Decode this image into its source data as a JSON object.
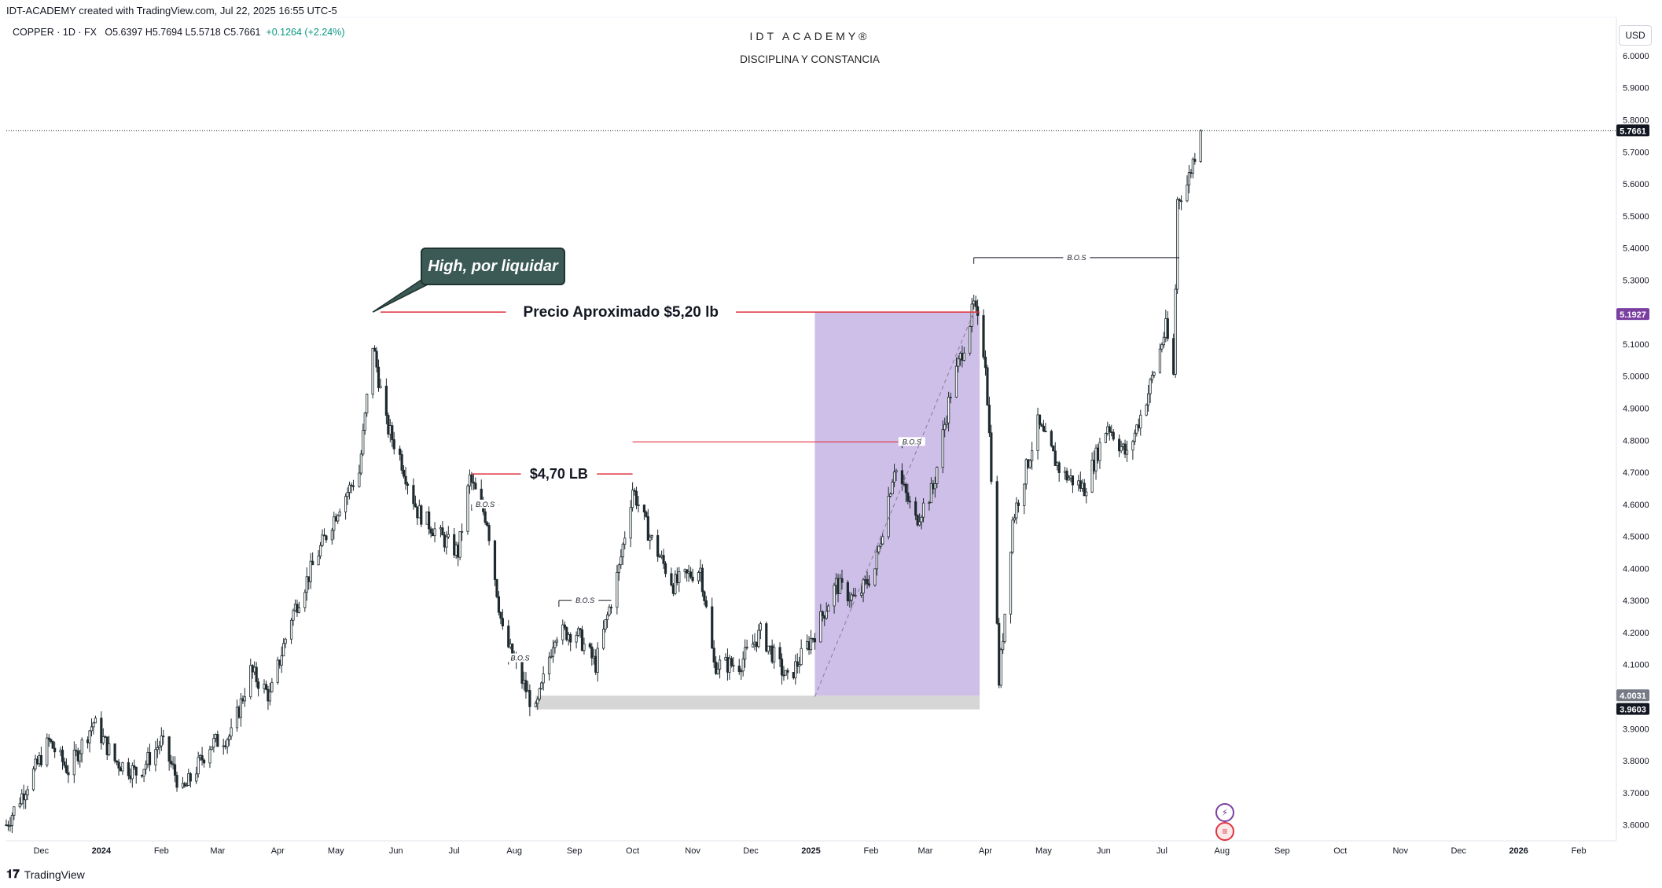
{
  "header": {
    "attribution": "IDT-ACADEMY created with TradingView.com, Jul 22, 2025 16:55 UTC-5",
    "symbol": "COPPER · 1D · FX",
    "ohlc": "O5.6397 H5.7694 L5.5718 C5.7661",
    "change": "+0.1264 (+2.24%)"
  },
  "watermark": {
    "line1": "IDT ACADEMY®",
    "line2": "DISCIPLINA Y CONSTANCIA"
  },
  "currency_button": "USD",
  "branding": "TradingView",
  "icons": {
    "flash": "lightning-icon",
    "flag": "us-flag-icon"
  },
  "colors": {
    "bull": "#1e2a2e",
    "bear": "#1e2a2e",
    "level": "#e0323f",
    "zone": "#b39ddb",
    "accent_label": "#7b3fa1"
  },
  "chart_data": {
    "type": "candlestick",
    "title": "COPPER · 1D · FX",
    "ylim": [
      3.55,
      6.12
    ],
    "y_ticks": [
      "3.6000",
      "3.7000",
      "3.8000",
      "3.9000",
      "4.0000",
      "4.1000",
      "4.2000",
      "4.3000",
      "4.4000",
      "4.5000",
      "4.6000",
      "4.7000",
      "4.8000",
      "4.9000",
      "5.0000",
      "5.1000",
      "5.2000",
      "5.3000",
      "5.4000",
      "5.5000",
      "5.6000",
      "5.7000",
      "5.8000",
      "5.9000",
      "6.0000"
    ],
    "x_range": [
      "2023-11-13",
      "2026-02-20"
    ],
    "x_ticks": [
      {
        "label": "Dec",
        "date": "2023-12-01"
      },
      {
        "label": "2024",
        "date": "2024-01-01"
      },
      {
        "label": "Feb",
        "date": "2024-02-01"
      },
      {
        "label": "Mar",
        "date": "2024-03-01"
      },
      {
        "label": "Apr",
        "date": "2024-04-01"
      },
      {
        "label": "May",
        "date": "2024-05-01"
      },
      {
        "label": "Jun",
        "date": "2024-06-01"
      },
      {
        "label": "Jul",
        "date": "2024-07-01"
      },
      {
        "label": "Aug",
        "date": "2024-08-01"
      },
      {
        "label": "Sep",
        "date": "2024-09-01"
      },
      {
        "label": "Oct",
        "date": "2024-10-01"
      },
      {
        "label": "Nov",
        "date": "2024-11-01"
      },
      {
        "label": "Dec",
        "date": "2024-12-01"
      },
      {
        "label": "2025",
        "date": "2025-01-01"
      },
      {
        "label": "Feb",
        "date": "2025-02-01"
      },
      {
        "label": "Mar",
        "date": "2025-03-01"
      },
      {
        "label": "Apr",
        "date": "2025-04-01"
      },
      {
        "label": "May",
        "date": "2025-05-01"
      },
      {
        "label": "Jun",
        "date": "2025-06-01"
      },
      {
        "label": "Jul",
        "date": "2025-07-01"
      },
      {
        "label": "Aug",
        "date": "2025-08-01"
      },
      {
        "label": "Sep",
        "date": "2025-09-01"
      },
      {
        "label": "Oct",
        "date": "2025-10-01"
      },
      {
        "label": "Nov",
        "date": "2025-11-01"
      },
      {
        "label": "Dec",
        "date": "2025-12-01"
      },
      {
        "label": "2026",
        "date": "2026-01-01"
      },
      {
        "label": "Feb",
        "date": "2026-02-01"
      }
    ],
    "price_path": [
      [
        "2023-11-13",
        3.6
      ],
      [
        "2023-11-25",
        3.74
      ],
      [
        "2023-12-05",
        3.86
      ],
      [
        "2023-12-15",
        3.77
      ],
      [
        "2023-12-28",
        3.92
      ],
      [
        "2024-01-08",
        3.8
      ],
      [
        "2024-01-20",
        3.76
      ],
      [
        "2024-02-01",
        3.86
      ],
      [
        "2024-02-12",
        3.7
      ],
      [
        "2024-02-26",
        3.85
      ],
      [
        "2024-03-08",
        3.88
      ],
      [
        "2024-03-18",
        4.08
      ],
      [
        "2024-03-28",
        4.0
      ],
      [
        "2024-04-08",
        4.25
      ],
      [
        "2024-04-22",
        4.45
      ],
      [
        "2024-05-03",
        4.6
      ],
      [
        "2024-05-13",
        4.7
      ],
      [
        "2024-05-20",
        5.1
      ],
      [
        "2024-05-27",
        4.85
      ],
      [
        "2024-06-03",
        4.75
      ],
      [
        "2024-06-12",
        4.58
      ],
      [
        "2024-06-24",
        4.5
      ],
      [
        "2024-07-03",
        4.45
      ],
      [
        "2024-07-09",
        4.68
      ],
      [
        "2024-07-18",
        4.55
      ],
      [
        "2024-07-26",
        4.2
      ],
      [
        "2024-08-05",
        4.05
      ],
      [
        "2024-08-12",
        3.95
      ],
      [
        "2024-08-22",
        4.2
      ],
      [
        "2024-09-02",
        4.2
      ],
      [
        "2024-09-12",
        4.1
      ],
      [
        "2024-09-24",
        4.4
      ],
      [
        "2024-10-01",
        4.65
      ],
      [
        "2024-10-10",
        4.5
      ],
      [
        "2024-10-22",
        4.35
      ],
      [
        "2024-11-05",
        4.4
      ],
      [
        "2024-11-12",
        4.1
      ],
      [
        "2024-11-25",
        4.1
      ],
      [
        "2024-12-06",
        4.2
      ],
      [
        "2024-12-20",
        4.05
      ],
      [
        "2025-01-03",
        4.2
      ],
      [
        "2025-01-14",
        4.35
      ],
      [
        "2025-01-24",
        4.3
      ],
      [
        "2025-02-03",
        4.4
      ],
      [
        "2025-02-13",
        4.72
      ],
      [
        "2025-02-24",
        4.55
      ],
      [
        "2025-03-05",
        4.65
      ],
      [
        "2025-03-14",
        4.95
      ],
      [
        "2025-03-21",
        5.1
      ],
      [
        "2025-03-26",
        5.22
      ],
      [
        "2025-04-01",
        5.05
      ],
      [
        "2025-04-04",
        4.7
      ],
      [
        "2025-04-08",
        4.05
      ],
      [
        "2025-04-15",
        4.55
      ],
      [
        "2025-04-28",
        4.85
      ],
      [
        "2025-05-10",
        4.7
      ],
      [
        "2025-05-22",
        4.65
      ],
      [
        "2025-06-03",
        4.85
      ],
      [
        "2025-06-13",
        4.75
      ],
      [
        "2025-06-24",
        4.95
      ],
      [
        "2025-07-03",
        5.15
      ],
      [
        "2025-07-07",
        5.0
      ],
      [
        "2025-07-09",
        5.55
      ],
      [
        "2025-07-14",
        5.6
      ],
      [
        "2025-07-21",
        5.7661
      ]
    ],
    "last_date": "2025-07-21",
    "current_price": "5.7661",
    "price_labels": [
      {
        "value": "5.1927",
        "price": 5.1927,
        "color": "#7b3fa1"
      },
      {
        "value": "4.0031",
        "price": 4.0031,
        "color": "#787b86"
      },
      {
        "value": "3.9603",
        "price": 3.9603,
        "color": "#131722"
      }
    ],
    "annotations": [
      {
        "text": "Precio Aproximado $5,20 lb",
        "price": 5.2,
        "x_start": "2024-05-24",
        "x_end": "2025-03-29",
        "label_at": "2024-09-25"
      },
      {
        "text": "$4,70 LB",
        "price": 4.695,
        "x_start": "2024-07-10",
        "x_end": "2024-10-01",
        "label_at": "2024-08-24"
      }
    ],
    "secondary_lines": [
      {
        "price": 4.795,
        "x_start": "2024-10-01",
        "x_end": "2025-02-27"
      }
    ],
    "bos_labels": [
      {
        "text": "B.O.S",
        "price": 4.6,
        "x_start": "2024-07-10",
        "x_end": "2024-07-24"
      },
      {
        "text": "B.O.S",
        "price": 4.3,
        "x_start": "2024-08-24",
        "x_end": "2024-09-20"
      },
      {
        "text": "B.O.S",
        "price": 4.12,
        "x_start": "2024-07-29",
        "x_end": "2024-08-10"
      },
      {
        "text": "B.O.S",
        "price": 4.795,
        "x_start": "2025-02-17",
        "x_end": "2025-02-27"
      },
      {
        "text": "B.O.S",
        "price": 5.37,
        "x_start": "2025-03-26",
        "x_end": "2025-07-10"
      }
    ],
    "callout": {
      "text": "High, por liquidar",
      "anchor_date": "2024-05-20",
      "anchor_price": 5.2
    },
    "zones": [
      {
        "x_start": "2025-01-03",
        "x_end": "2025-03-29",
        "y_top": 5.2,
        "y_bottom": 4.0031,
        "fill": "#b39ddb"
      },
      {
        "x_start": "2024-08-12",
        "x_end": "2025-03-29",
        "y_top": 4.0031,
        "y_bottom": 3.9603,
        "fill": "#c8c8c8"
      }
    ],
    "trend_line": {
      "from_date": "2025-01-03",
      "from_price": 4.0,
      "to_date": "2025-03-26",
      "to_price": 5.2
    }
  }
}
